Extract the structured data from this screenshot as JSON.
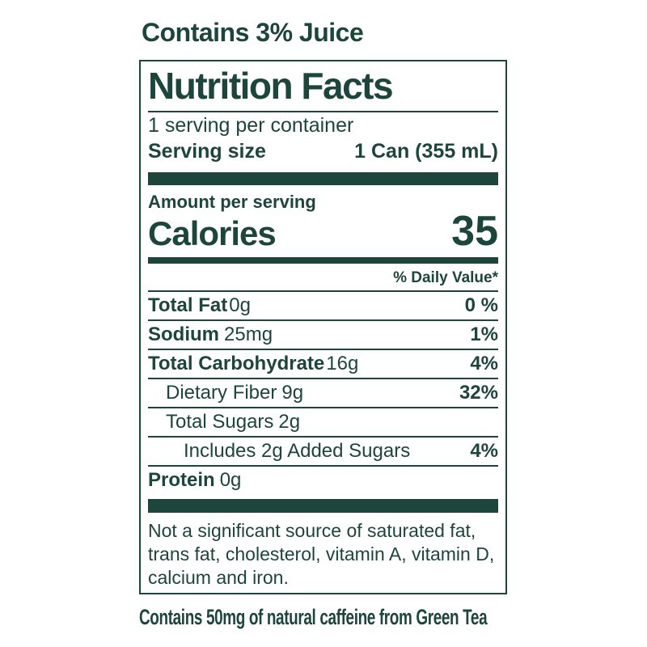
{
  "colors": {
    "accent_green": "#1d453c",
    "background": "#ffffff"
  },
  "top_note": "Contains 3% Juice",
  "label": {
    "title": "Nutrition Facts",
    "servings_per_container": "1 serving per container",
    "serving_size_label": "Serving size",
    "serving_size_value": "1 Can (355 mL)",
    "amount_per_serving": "Amount per serving",
    "calories_label": "Calories",
    "calories_value": "35",
    "daily_value_header": "% Daily Value*",
    "rows": [
      {
        "name": "Total Fat",
        "amount": "0g",
        "dv": "0 %",
        "bold_name": true,
        "indent": 0
      },
      {
        "name": "Sodium",
        "amount": "25mg",
        "dv": "1%",
        "bold_name": true,
        "indent": 0
      },
      {
        "name": "Total Carbohydrate",
        "amount": "16g",
        "dv": "4%",
        "bold_name": true,
        "indent": 0
      },
      {
        "name": "Dietary Fiber",
        "amount": "9g",
        "dv": "32%",
        "bold_name": false,
        "indent": 1
      },
      {
        "name": "Total Sugars",
        "amount": "2g",
        "dv": "",
        "bold_name": false,
        "indent": 1
      },
      {
        "name": "Includes 2g Added Sugars",
        "amount": "",
        "dv": "4%",
        "bold_name": false,
        "indent": 2
      },
      {
        "name": "Protein",
        "amount": "0g",
        "dv": "",
        "bold_name": true,
        "indent": 0
      }
    ],
    "footnote": "Not a significant source of saturated fat, trans fat, cholesterol, vitamin A, vitamin D, calcium and iron."
  },
  "bottom_note": "Contains 50mg of natural caffeine from Green Tea"
}
